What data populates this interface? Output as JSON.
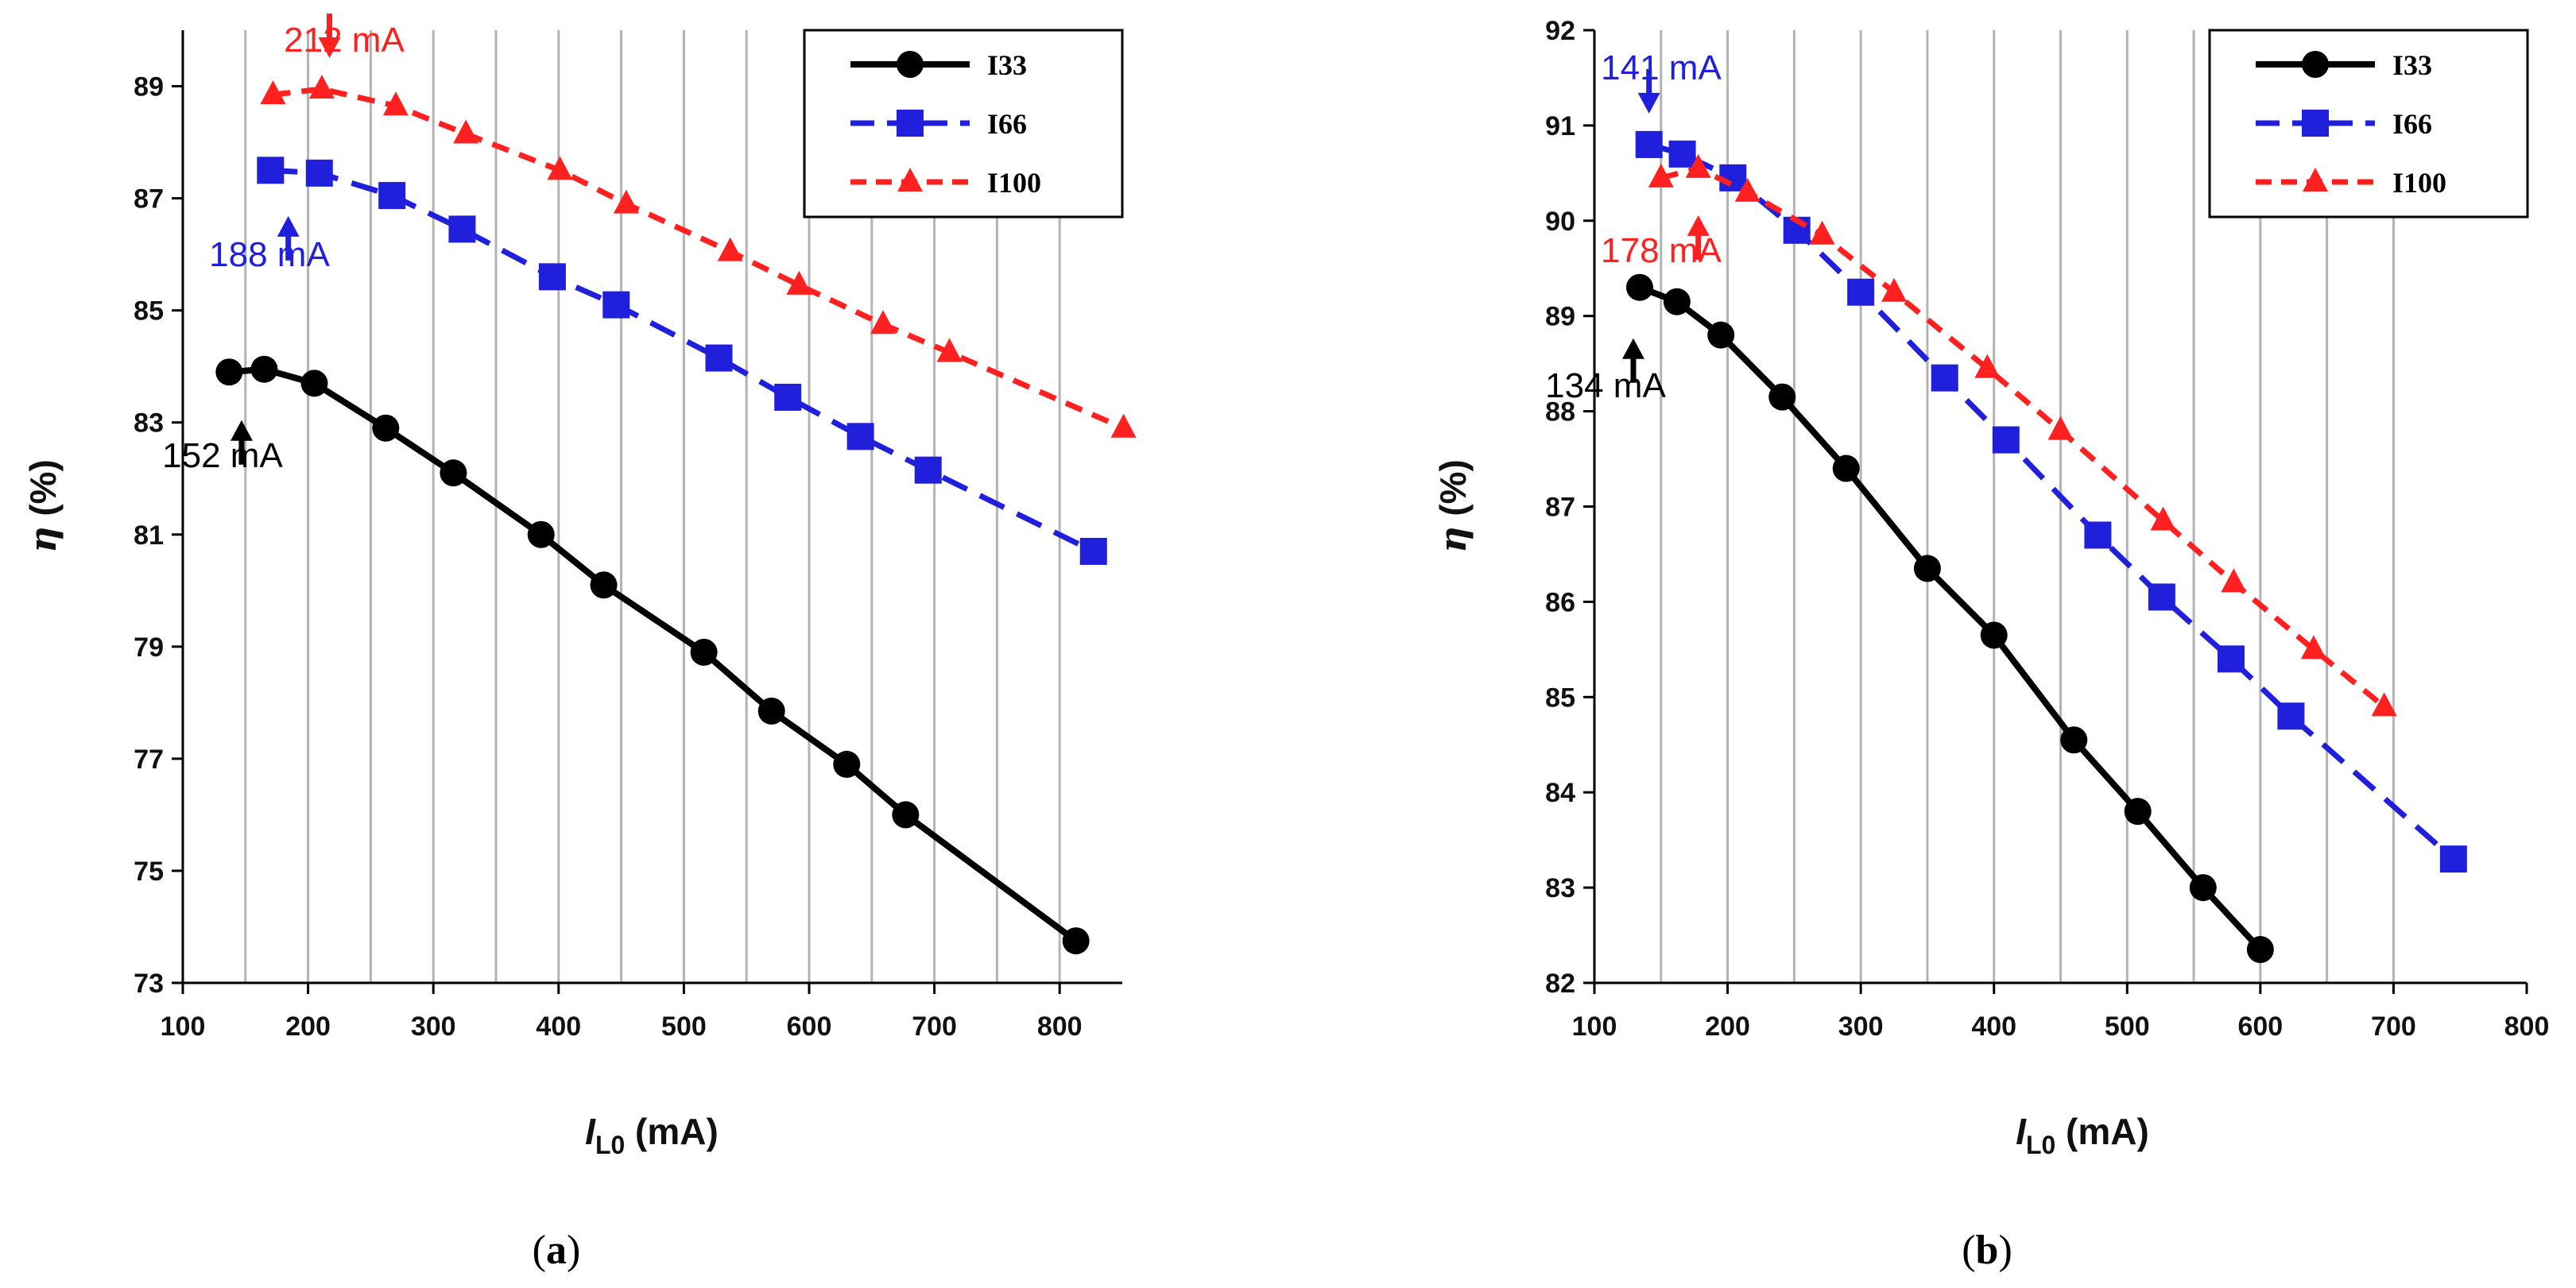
{
  "chart_data": [
    {
      "type": "line",
      "caption": "(a)",
      "xlabel": "I",
      "xlabel_sub": "L0",
      "xlabel_unit": " (mA)",
      "ylabel": "η",
      "ylabel_unit": " (%)",
      "xlim": [
        100,
        850
      ],
      "ylim": [
        73,
        90
      ],
      "xticks": [
        100,
        200,
        300,
        400,
        500,
        600,
        700,
        800
      ],
      "yticks": [
        73,
        75,
        77,
        79,
        81,
        83,
        85,
        87,
        89
      ],
      "vgrid": [
        150,
        200,
        250,
        300,
        350,
        400,
        450,
        500,
        550,
        600,
        650,
        700,
        750,
        800
      ],
      "legend": "top-right",
      "series": [
        {
          "name": "I33",
          "color": "#000000",
          "marker": "circle",
          "dash": "solid",
          "x": [
            137,
            165,
            205,
            262,
            316,
            386,
            436,
            516,
            570,
            630,
            677,
            813
          ],
          "y": [
            83.9,
            83.95,
            83.7,
            82.9,
            82.1,
            81.0,
            80.1,
            78.9,
            77.85,
            76.9,
            76.0,
            73.75
          ]
        },
        {
          "name": "I66",
          "color": "#1f1fdc",
          "marker": "square",
          "dash": "dashed",
          "x": [
            170,
            209,
            267,
            323,
            395,
            446,
            528,
            583,
            641,
            695,
            827
          ],
          "y": [
            87.5,
            87.45,
            87.05,
            86.45,
            85.6,
            85.1,
            84.15,
            83.45,
            82.75,
            82.15,
            80.7
          ]
        },
        {
          "name": "I100",
          "color": "#ff2020",
          "marker": "triangle",
          "dash": "dashed",
          "x": [
            172,
            211,
            270,
            326,
            401,
            454,
            537,
            592,
            659,
            712,
            851
          ],
          "y": [
            88.85,
            88.95,
            88.65,
            88.15,
            87.5,
            86.9,
            86.05,
            85.45,
            84.75,
            84.25,
            82.9
          ]
        }
      ],
      "annotations": [
        {
          "text": "212 mA",
          "color": "#ff2020",
          "x": 212,
          "y": 88.95,
          "dir": "down"
        },
        {
          "text": "188 mA",
          "color": "#1f1fdc",
          "x": 188,
          "y": 87.45,
          "dir": "up"
        },
        {
          "text": "152 mA",
          "color": "#000000",
          "x": 152,
          "y": 83.95,
          "dir": "up"
        }
      ]
    },
    {
      "type": "line",
      "caption": "(b)",
      "xlabel": "I",
      "xlabel_sub": "L0",
      "xlabel_unit": " (mA)",
      "ylabel": "η",
      "ylabel_unit": " (%)",
      "xlim": [
        100,
        800
      ],
      "ylim": [
        82,
        92
      ],
      "xticks": [
        100,
        200,
        300,
        400,
        500,
        600,
        700,
        800
      ],
      "yticks": [
        82,
        83,
        84,
        85,
        86,
        87,
        88,
        89,
        90,
        91,
        92
      ],
      "vgrid": [
        150,
        200,
        250,
        300,
        350,
        400,
        450,
        500,
        550,
        600,
        650,
        700
      ],
      "legend": "top-right",
      "series": [
        {
          "name": "I33",
          "color": "#000000",
          "marker": "circle",
          "dash": "solid",
          "x": [
            134,
            162,
            195,
            241,
            289,
            350,
            400,
            460,
            508,
            557,
            600
          ],
          "y": [
            89.3,
            89.15,
            88.8,
            88.15,
            87.4,
            86.35,
            85.65,
            84.55,
            83.8,
            83.0,
            82.35
          ]
        },
        {
          "name": "I66",
          "color": "#1f1fdc",
          "marker": "square",
          "dash": "dashed",
          "x": [
            141,
            166,
            204,
            252,
            300,
            363,
            409,
            478,
            526,
            578,
            623,
            745
          ],
          "y": [
            90.8,
            90.7,
            90.45,
            89.9,
            89.25,
            88.35,
            87.7,
            86.7,
            86.05,
            85.4,
            84.8,
            83.3
          ]
        },
        {
          "name": "I100",
          "color": "#ff2020",
          "marker": "triangle",
          "dash": "dashed",
          "x": [
            150,
            178,
            215,
            271,
            325,
            395,
            450,
            527,
            580,
            640,
            693
          ],
          "y": [
            90.45,
            90.55,
            90.3,
            89.85,
            89.25,
            88.45,
            87.8,
            86.85,
            86.2,
            85.5,
            84.9
          ]
        }
      ],
      "annotations": [
        {
          "text": "141 mA",
          "color": "#1f1fdc",
          "x": 141,
          "y": 90.8,
          "dir": "down"
        },
        {
          "text": "178 mA",
          "color": "#ff2020",
          "x": 178,
          "y": 90.55,
          "dir": "up"
        },
        {
          "text": "134 mA",
          "color": "#000000",
          "x": 134,
          "y": 89.3,
          "dir": "up"
        }
      ]
    }
  ]
}
